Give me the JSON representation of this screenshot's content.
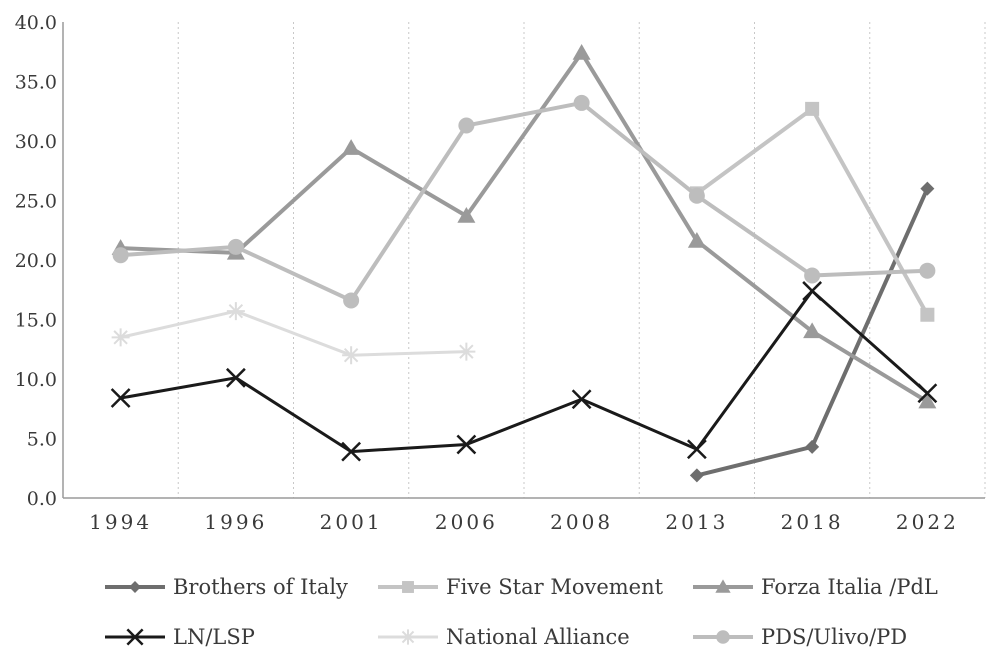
{
  "chart_data": {
    "type": "line",
    "categories": [
      "1994",
      "1996",
      "2001",
      "2006",
      "2008",
      "2013",
      "2018",
      "2022"
    ],
    "ylim": [
      0,
      40
    ],
    "yticks": [
      "0.0",
      "5.0",
      "10.0",
      "15.0",
      "20.0",
      "25.0",
      "30.0",
      "35.0",
      "40.0"
    ],
    "grid": "vertical dotted",
    "legend_position": "bottom",
    "series": [
      {
        "name": "Brothers of Italy",
        "color": "#6e6e6e",
        "marker": "diamond",
        "width": 4,
        "values": [
          null,
          null,
          null,
          null,
          null,
          1.9,
          4.3,
          26.0
        ]
      },
      {
        "name": "Five Star Movement",
        "color": "#c4c4c4",
        "marker": "square",
        "width": 4,
        "values": [
          null,
          null,
          null,
          null,
          null,
          25.6,
          32.7,
          15.4
        ]
      },
      {
        "name": "Forza Italia /PdL",
        "color": "#9a9a9a",
        "marker": "triangle",
        "width": 4,
        "values": [
          21.0,
          20.6,
          29.4,
          23.7,
          37.4,
          21.6,
          14.0,
          8.1
        ]
      },
      {
        "name": "LN/LSP",
        "color": "#1a1a1a",
        "marker": "x",
        "width": 3,
        "values": [
          8.4,
          10.1,
          3.9,
          4.5,
          8.3,
          4.1,
          17.4,
          8.8
        ]
      },
      {
        "name": "National Alliance",
        "color": "#dcdcdc",
        "marker": "star",
        "width": 3,
        "values": [
          13.5,
          15.7,
          12.0,
          12.3,
          null,
          null,
          null,
          null
        ]
      },
      {
        "name": "PDS/Ulivo/PD",
        "color": "#bdbdbd",
        "marker": "circle",
        "width": 4,
        "values": [
          20.4,
          21.1,
          16.6,
          31.3,
          33.2,
          25.4,
          18.7,
          19.1
        ]
      }
    ]
  }
}
